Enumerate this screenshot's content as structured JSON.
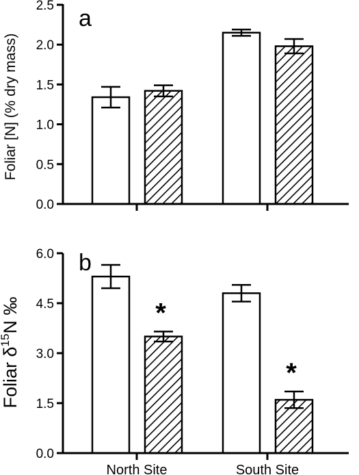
{
  "chart_data": [
    {
      "type": "bar",
      "panel_label": "a",
      "ylabel": "Foliar [N] (% dry mass)",
      "ylim": [
        0,
        2.5
      ],
      "yticks": [
        "0.0",
        "0.5",
        "1.0",
        "1.5",
        "2.0",
        "2.5"
      ],
      "categories": [
        "North Site",
        "South Site"
      ],
      "show_category_labels": false,
      "series": [
        {
          "fill": "open",
          "values": [
            1.34,
            2.15
          ],
          "errors": [
            0.13,
            0.04
          ]
        },
        {
          "fill": "hatched",
          "values": [
            1.42,
            1.98
          ],
          "errors": [
            0.07,
            0.09
          ]
        }
      ],
      "annotations": []
    },
    {
      "type": "bar",
      "panel_label": "b",
      "ylabel": {
        "prefix": "Foliar δ",
        "sup": "15",
        "suffix": "N ‰"
      },
      "ylim": [
        0,
        6.0
      ],
      "yticks": [
        "0.0",
        "1.5",
        "3.0",
        "4.5",
        "6.0"
      ],
      "categories": [
        "North Site",
        "South Site"
      ],
      "show_category_labels": true,
      "series": [
        {
          "fill": "open",
          "values": [
            5.3,
            4.8
          ],
          "errors": [
            0.35,
            0.25
          ]
        },
        {
          "fill": "hatched",
          "values": [
            3.5,
            1.6
          ],
          "errors": [
            0.15,
            0.25
          ]
        }
      ],
      "annotations": [
        {
          "text": "*",
          "category_index": 0,
          "series_index": 1
        },
        {
          "text": "*",
          "category_index": 1,
          "series_index": 1
        }
      ]
    }
  ],
  "colors": {
    "ink": "#000000",
    "open_fill": "#ffffff",
    "hatch": "#000000"
  }
}
